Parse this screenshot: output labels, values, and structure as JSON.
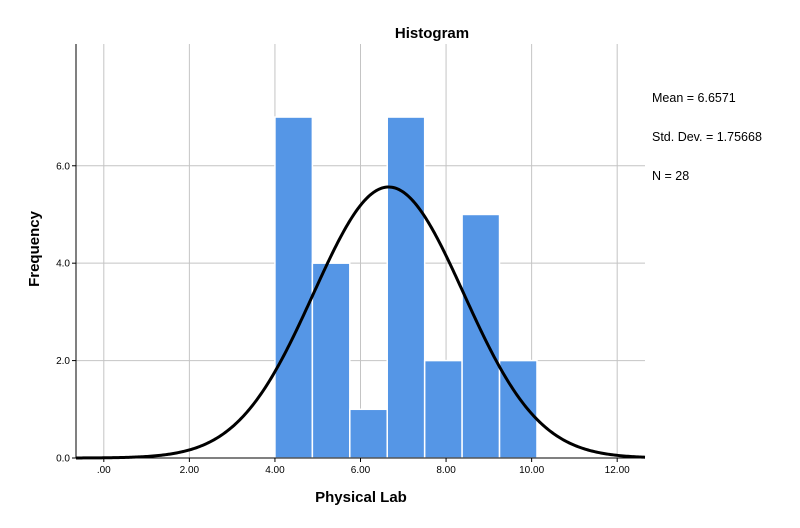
{
  "chart_data": {
    "type": "bar",
    "title": "Histogram",
    "xlabel": "Physical Lab",
    "ylabel": "Frequency",
    "xlim": [
      -0.65,
      12.65
    ],
    "ylim": [
      0,
      8.5
    ],
    "x_ticks": [
      0,
      2,
      4,
      6,
      8,
      10,
      12
    ],
    "x_tick_labels": [
      ".00",
      "2.00",
      "4.00",
      "6.00",
      "8.00",
      "10.00",
      "12.00"
    ],
    "y_ticks": [
      0,
      2,
      4,
      6
    ],
    "y_tick_labels": [
      "0.0",
      "2.0",
      "4.0",
      "6.0"
    ],
    "grid": true,
    "bin_width": 0.875,
    "bins": [
      {
        "start": 4.0,
        "end": 4.875,
        "count": 7
      },
      {
        "start": 4.875,
        "end": 5.75,
        "count": 4
      },
      {
        "start": 5.75,
        "end": 6.625,
        "count": 1
      },
      {
        "start": 6.625,
        "end": 7.5,
        "count": 7
      },
      {
        "start": 7.5,
        "end": 8.375,
        "count": 2
      },
      {
        "start": 8.375,
        "end": 9.25,
        "count": 5
      },
      {
        "start": 9.25,
        "end": 10.125,
        "count": 2
      }
    ],
    "normal_curve": {
      "mean": 6.6571,
      "std_dev": 1.75668,
      "n": 28
    },
    "bar_color": "#5596e6",
    "curve_color": "#000000"
  },
  "stats": {
    "mean_text": "Mean = 6.6571",
    "std_text": "Std. Dev. = 1.75668",
    "n_text": "N = 28"
  }
}
